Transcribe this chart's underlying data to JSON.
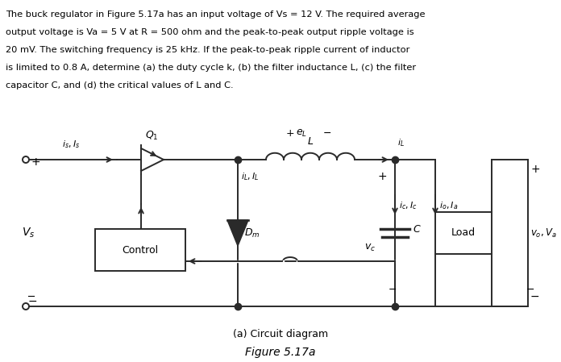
{
  "caption1": "(a) Circuit diagram",
  "caption2": "Figure 5.17a",
  "bg_color": "#ffffff",
  "line_color": "#2a2a2a",
  "text_color": "#000000",
  "desc_lines": [
    "The buck regulator in Figure 5.17a has an input voltage of Vs = 12 V. The required average",
    "output voltage is Va = 5 V at R = 500 ohm and the peak-to-peak output ripple voltage is",
    "20 mV. The switching frequency is 25 kHz. If the peak-to-peak ripple current of inductor",
    "is limited to 0.8 A, determine (a) the duty cycle k, (b) the filter inductance L, (c) the filter",
    "capacitor C, and (d) the critical values of L and C."
  ]
}
